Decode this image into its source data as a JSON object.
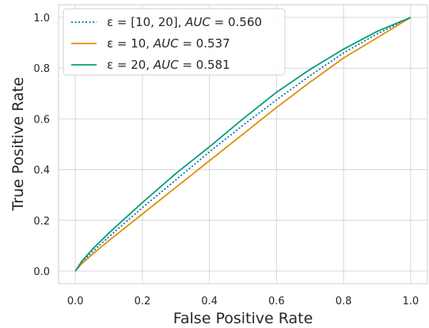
{
  "chart_data": {
    "type": "line",
    "xlabel": "False Positive Rate",
    "ylabel": "True Positive Rate",
    "xlim": [
      -0.05,
      1.05
    ],
    "ylim": [
      -0.05,
      1.05
    ],
    "x_ticks": [
      "0.0",
      "0.2",
      "0.4",
      "0.6",
      "0.8",
      "1.0"
    ],
    "y_ticks": [
      "0.0",
      "0.2",
      "0.4",
      "0.6",
      "0.8",
      "1.0"
    ],
    "grid": true,
    "legend_position": "upper-left",
    "series": [
      {
        "name": "ε = [10, 20], AUC = 0.560",
        "legend_label": {
          "pre": "ε = [10, 20], ",
          "auc": "AUC",
          "post": " = 0.560"
        },
        "color": "#0173b2",
        "style": "dotted",
        "x": [
          0,
          0.02,
          0.05,
          0.1,
          0.2,
          0.3,
          0.4,
          0.5,
          0.6,
          0.7,
          0.8,
          0.9,
          1.0
        ],
        "y": [
          0,
          0.035,
          0.075,
          0.135,
          0.25,
          0.36,
          0.47,
          0.575,
          0.675,
          0.77,
          0.86,
          0.935,
          1.0
        ]
      },
      {
        "name": "ε = 10, AUC = 0.537",
        "legend_label": {
          "pre": "ε = 10, ",
          "auc": "AUC",
          "post": " = 0.537"
        },
        "color": "#de8f05",
        "style": "solid",
        "x": [
          0,
          0.02,
          0.05,
          0.1,
          0.2,
          0.3,
          0.4,
          0.5,
          0.6,
          0.7,
          0.8,
          0.9,
          1.0
        ],
        "y": [
          0,
          0.03,
          0.065,
          0.12,
          0.225,
          0.33,
          0.435,
          0.54,
          0.645,
          0.745,
          0.84,
          0.92,
          1.0
        ]
      },
      {
        "name": "ε = 20, AUC = 0.581",
        "legend_label": {
          "pre": "ε = 20, ",
          "auc": "AUC",
          "post": " = 0.581"
        },
        "color": "#029e73",
        "style": "solid",
        "x": [
          0,
          0.02,
          0.05,
          0.1,
          0.2,
          0.3,
          0.4,
          0.5,
          0.6,
          0.7,
          0.8,
          0.9,
          1.0
        ],
        "y": [
          0,
          0.04,
          0.085,
          0.15,
          0.27,
          0.385,
          0.49,
          0.6,
          0.705,
          0.795,
          0.875,
          0.945,
          1.0
        ]
      }
    ]
  }
}
